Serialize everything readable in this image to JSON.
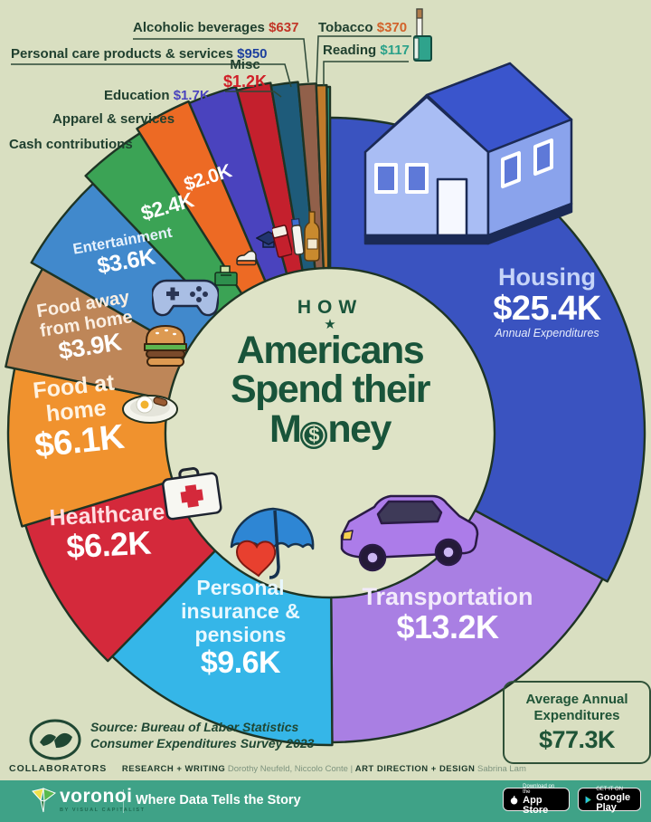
{
  "title": {
    "kicker": "HOW",
    "line1": "Americans",
    "line2": "Spend their",
    "money_pre": "M",
    "money_post": "ney",
    "coin_symbol": "$"
  },
  "chart_data": {
    "type": "pie",
    "style": "donut-fan",
    "title": "How Americans Spend their Money",
    "units": "USD, annual, K = thousands",
    "total_label": "Average Annual Expenditures",
    "total_value_label": "$77.3K",
    "segments": [
      {
        "label": "Housing",
        "value": 25.4,
        "value_label": "$25.4K",
        "sub_label": "Annual Expenditures",
        "color": "#3A53C0"
      },
      {
        "label": "Transportation",
        "value": 13.2,
        "value_label": "$13.2K",
        "color": "#A97FE3"
      },
      {
        "label": "Personal insurance & pensions",
        "value": 9.6,
        "value_label": "$9.6K",
        "color": "#35B6E8"
      },
      {
        "label": "Healthcare",
        "value": 6.2,
        "value_label": "$6.2K",
        "color": "#D4293B"
      },
      {
        "label": "Food at home",
        "value": 6.1,
        "value_label": "$6.1K",
        "color": "#F0922E"
      },
      {
        "label": "Food away from home",
        "value": 3.9,
        "value_label": "$3.9K",
        "color": "#BE8658"
      },
      {
        "label": "Entertainment",
        "value": 3.6,
        "value_label": "$3.6K",
        "color": "#4189CC"
      },
      {
        "label": "Cash contributions",
        "value": 2.4,
        "value_label": "$2.4K",
        "color": "#3BA355"
      },
      {
        "label": "Apparel & services",
        "value": 2.0,
        "value_label": "$2.0K",
        "color": "#ED6A24"
      },
      {
        "label": "Education",
        "value": 1.7,
        "value_label": "$1.7K",
        "color": "#4A43BE",
        "value_color": "#4A43BE"
      },
      {
        "label": "Misc",
        "value": 1.2,
        "value_label": "$1.2K",
        "color": "#C4202D",
        "value_color": "#D01F28"
      },
      {
        "label": "Personal care products & services",
        "value": 0.95,
        "value_label": "$950",
        "color": "#1E5B7A",
        "value_color": "#1C3F9E"
      },
      {
        "label": "Alcoholic beverages",
        "value": 0.637,
        "value_label": "$637",
        "color": "#91604A",
        "value_color": "#C23527"
      },
      {
        "label": "Tobacco",
        "value": 0.37,
        "value_label": "$370",
        "color": "#C07A2B",
        "value_color": "#D2622A"
      },
      {
        "label": "Reading",
        "value": 0.117,
        "value_label": "$117",
        "color": "#2FA38C",
        "value_color": "#2AA189"
      }
    ],
    "legend_position": "around-ring",
    "grid": false
  },
  "source": {
    "line1": "Source: Bureau of Labor Statistics",
    "line2": "Consumer Expenditures Survey 2023"
  },
  "collaborators": {
    "heading": "COLLABORATORS",
    "research_label": "RESEARCH + WRITING",
    "research_names": "Dorothy Neufeld, Niccolo Conte",
    "separator": "|",
    "design_label": "ART DIRECTION + DESIGN",
    "design_names": "Sabrina Lam"
  },
  "footer": {
    "brand": "voronoi",
    "brand_sub": "BY VISUAL CAPITALIST",
    "tagline": "Where Data Tells the Story",
    "app_store_line1": "Download on the",
    "app_store_line2": "App Store",
    "google_play_line1": "GET IT ON",
    "google_play_line2": "Google Play"
  },
  "palette": {
    "background": "#D9DFC1",
    "ring_outline": "#1E3424",
    "title_color": "#19543A",
    "footer_background": "#3FA287"
  }
}
